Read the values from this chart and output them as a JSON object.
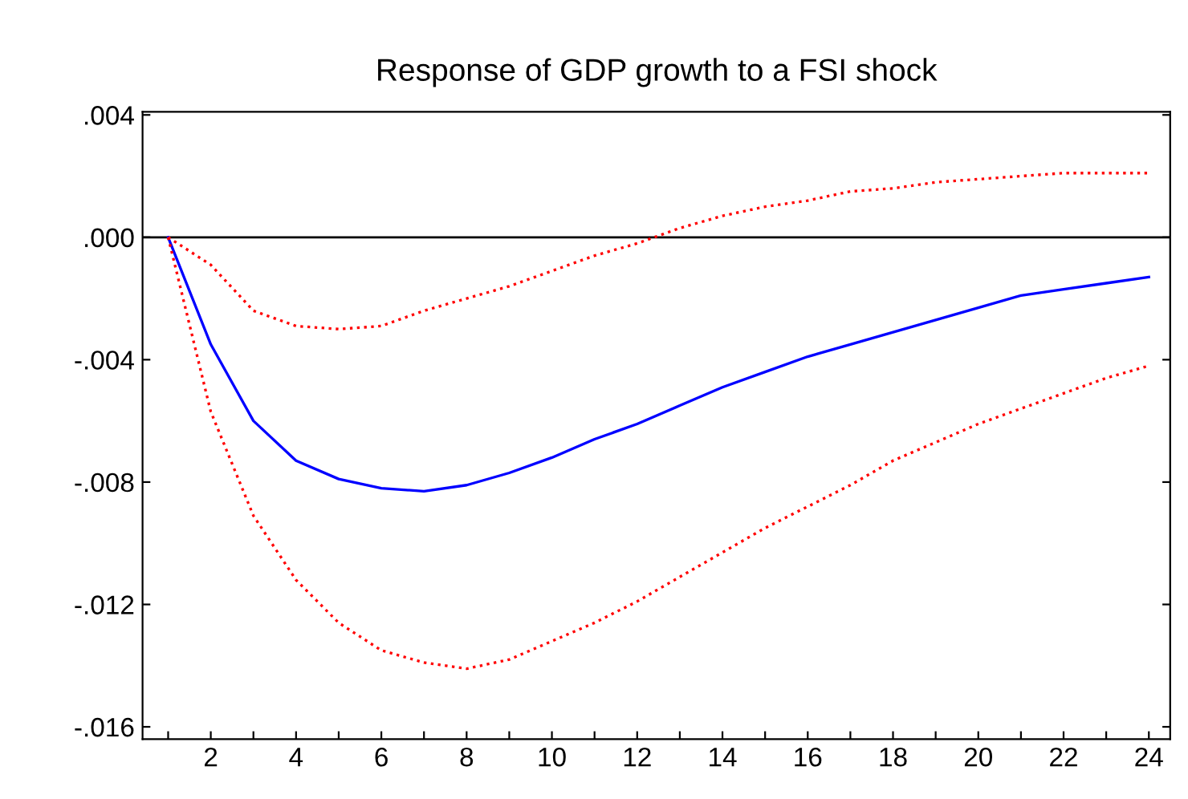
{
  "chart_data": {
    "type": "line",
    "title": "Response of GDP growth to a FSI shock",
    "x": [
      1,
      2,
      3,
      4,
      5,
      6,
      7,
      8,
      9,
      10,
      11,
      12,
      13,
      14,
      15,
      16,
      17,
      18,
      19,
      20,
      21,
      22,
      23,
      24
    ],
    "series": [
      {
        "color": "#0000ff",
        "line_style": "solid",
        "values": [
          0,
          -0.0035,
          -0.006,
          -0.0073,
          -0.0079,
          -0.0082,
          -0.0083,
          -0.0081,
          -0.0077,
          -0.0072,
          -0.0066,
          -0.0061,
          -0.0055,
          -0.0049,
          -0.0044,
          -0.0039,
          -0.0035,
          -0.0031,
          -0.0027,
          -0.0023,
          -0.0019,
          -0.0017,
          -0.0015,
          -0.0013
        ]
      },
      {
        "color": "#ff0000",
        "line_style": "dotted",
        "values": [
          0,
          -0.0009,
          -0.0024,
          -0.0029,
          -0.003,
          -0.0029,
          -0.0024,
          -0.002,
          -0.0016,
          -0.0011,
          -0.0006,
          -0.0002,
          0.0003,
          0.0007,
          0.001,
          0.0012,
          0.0015,
          0.0016,
          0.0018,
          0.0019,
          0.002,
          0.0021,
          0.0021,
          0.0021
        ]
      },
      {
        "color": "#ff0000",
        "line_style": "dotted",
        "values": [
          0,
          -0.0057,
          -0.0091,
          -0.0112,
          -0.0126,
          -0.0135,
          -0.0139,
          -0.0141,
          -0.0138,
          -0.0132,
          -0.0126,
          -0.0119,
          -0.0111,
          -0.0103,
          -0.0095,
          -0.0088,
          -0.0081,
          -0.0073,
          -0.0067,
          -0.0061,
          -0.0056,
          -0.0051,
          -0.0046,
          -0.0042
        ]
      }
    ],
    "xlim": [
      0.4,
      24.5
    ],
    "ylim": [
      -0.0164,
      0.0041
    ],
    "xticks": [
      {
        "value": 1,
        "label": null
      },
      2,
      {
        "value": 3,
        "label": null
      },
      4,
      {
        "value": 5,
        "label": null
      },
      6,
      {
        "value": 7,
        "label": null
      },
      8,
      {
        "value": 9,
        "label": null
      },
      10,
      {
        "value": 11,
        "label": null
      },
      12,
      {
        "value": 13,
        "label": null
      },
      14,
      {
        "value": 15,
        "label": null
      },
      16,
      {
        "value": 17,
        "label": null
      },
      18,
      {
        "value": 19,
        "label": null
      },
      20,
      {
        "value": 21,
        "label": null
      },
      22,
      {
        "value": 23,
        "label": null
      },
      24
    ],
    "yticks": [
      {
        "value": 0.004,
        "label": ".004"
      },
      {
        "value": 0,
        "label": ".000"
      },
      {
        "value": -0.004,
        "label": "-.004"
      },
      {
        "value": -0.008,
        "label": "-.008"
      },
      {
        "value": -0.012,
        "label": "-.012"
      },
      {
        "value": -0.016,
        "label": "-.016"
      }
    ],
    "ref_lines": [
      {
        "axis": "y",
        "value": 0,
        "color": "#000000",
        "line_style": "solid"
      }
    ],
    "grid": false,
    "legend": false,
    "marker": "none"
  }
}
